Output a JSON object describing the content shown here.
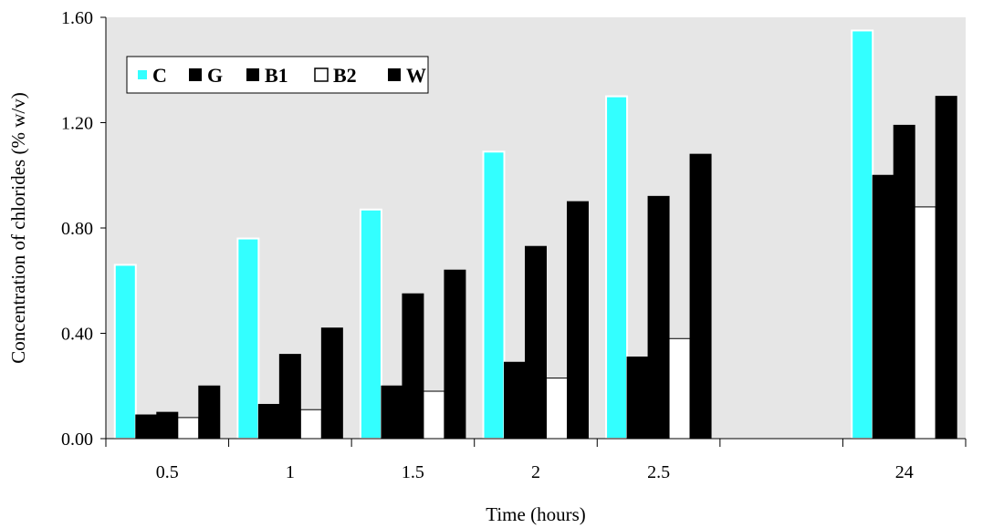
{
  "chart_data": {
    "type": "bar",
    "xlabel": "Time (hours)",
    "ylabel": "Concentration of chlorides (% w/v)",
    "ylim": [
      0,
      1.6
    ],
    "yticks": [
      "0.00",
      "0.40",
      "0.80",
      "1.20",
      "1.60"
    ],
    "ytick_values": [
      0,
      0.4,
      0.8,
      1.2,
      1.6
    ],
    "grid": false,
    "legend_placement": "top-left",
    "categories": [
      "0.5",
      "1",
      "1.5",
      "2",
      "2.5",
      "",
      "24"
    ],
    "series": [
      {
        "name": "C",
        "color": "#33ffff",
        "values": [
          0.66,
          0.76,
          0.87,
          1.09,
          1.3,
          null,
          1.55
        ]
      },
      {
        "name": "G",
        "color": "#000000",
        "values": [
          0.09,
          0.13,
          0.2,
          0.29,
          0.31,
          null,
          1.0
        ]
      },
      {
        "name": "B1",
        "color": "#000000",
        "values": [
          0.1,
          0.32,
          0.55,
          0.73,
          0.92,
          null,
          1.19
        ]
      },
      {
        "name": "B2",
        "color": "#ffffff",
        "values": [
          0.08,
          0.11,
          0.18,
          0.23,
          0.38,
          null,
          0.88
        ]
      },
      {
        "name": "W",
        "color": "#000000",
        "values": [
          0.2,
          0.42,
          0.64,
          0.9,
          1.08,
          null,
          1.3
        ]
      }
    ]
  },
  "colors": {
    "plot_background": "#e6e6e6",
    "outline": "#000000"
  }
}
